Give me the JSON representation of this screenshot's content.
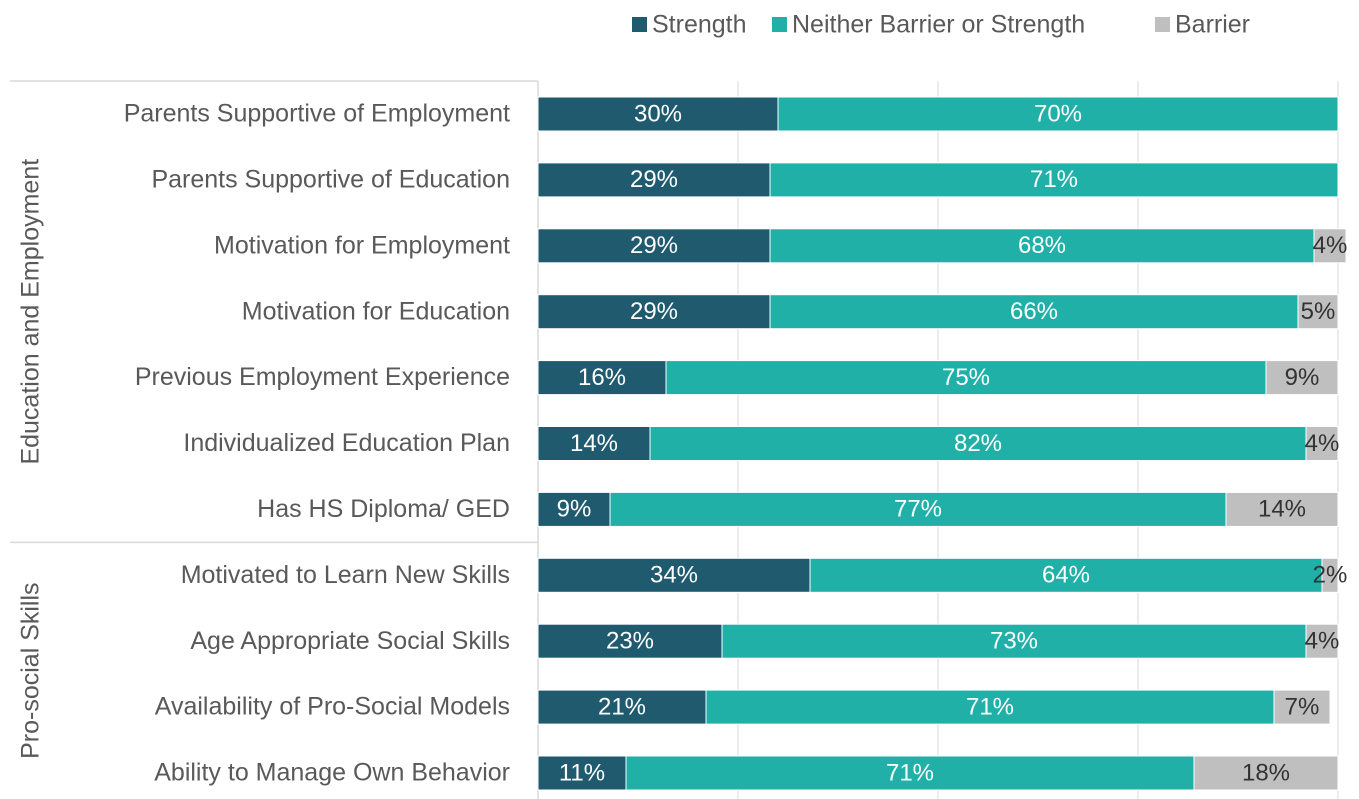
{
  "chart_data": {
    "type": "stacked-bar-horizontal",
    "categories": [
      "Parents Supportive of Employment",
      "Parents Supportive of Education",
      "Motivation for Employment",
      "Motivation for Education",
      "Previous Employment Experience",
      "Individualized Education Plan",
      "Has HS Diploma/ GED",
      "Motivated to Learn New Skills",
      "Age Appropriate Social Skills",
      "Availability of Pro-Social Models",
      "Ability to Manage Own Behavior"
    ],
    "groups": [
      {
        "label": "Education and Employment",
        "count": 7
      },
      {
        "label": "Pro-social Skills",
        "count": 4
      }
    ],
    "series": [
      {
        "name": "Strength",
        "color": "#1f5a6e",
        "label_color": "#ffffff",
        "values": [
          30,
          29,
          29,
          29,
          16,
          14,
          9,
          34,
          23,
          21,
          11
        ],
        "value_labels": [
          "30%",
          "29%",
          "29%",
          "29%",
          "16%",
          "14%",
          "9%",
          "34%",
          "23%",
          "21%",
          "11%"
        ]
      },
      {
        "name": "Neither Barrier or Strength",
        "color": "#20b0a8",
        "label_color": "#ffffff",
        "values": [
          70,
          71,
          68,
          66,
          75,
          82,
          77,
          64,
          73,
          71,
          71
        ],
        "value_labels": [
          "70%",
          "71%",
          "68%",
          "66%",
          "75%",
          "82%",
          "77%",
          "64%",
          "73%",
          "71%",
          "71%"
        ]
      },
      {
        "name": "Barrier",
        "color": "#bfbfbf",
        "label_color": "#333333",
        "values": [
          0,
          0,
          4,
          5,
          9,
          4,
          14,
          2,
          4,
          7,
          18
        ],
        "value_labels": [
          null,
          null,
          "4%",
          "5%",
          "9%",
          "4%",
          "14%",
          "2%",
          "4%",
          "7%",
          "18%"
        ]
      }
    ],
    "xlim": [
      0,
      100
    ],
    "xticks": [
      0,
      25,
      50,
      75,
      100
    ],
    "grid": true,
    "legend": "top"
  }
}
